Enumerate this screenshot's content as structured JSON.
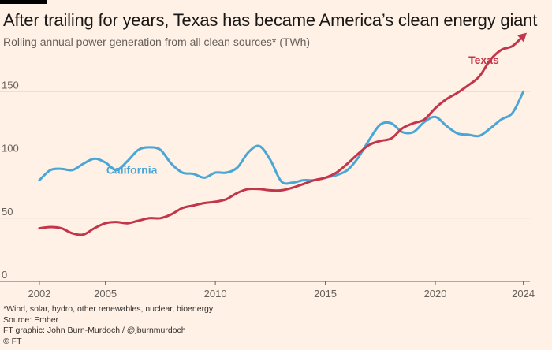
{
  "title": "After trailing for years, Texas has became America’s clean energy giant",
  "subtitle": "Rolling annual power generation from all clean sources* (TWh)",
  "footer": {
    "note": "*Wind, solar, hydro, other renewables, nuclear, bioenergy",
    "source": "Source: Ember",
    "credit": "FT graphic: John Burn-Murdoch / @jburnmurdoch",
    "copyright": "© FT"
  },
  "colors": {
    "california": "#4aa6d6",
    "texas": "#c3354a",
    "background": "#fff1e5"
  },
  "chart_data": {
    "type": "line",
    "title": "After trailing for years, Texas has became America’s clean energy giant",
    "ylabel": "Rolling annual power generation from all clean sources* (TWh)",
    "xlabel": "",
    "xlim": [
      2001.5,
      2024.3
    ],
    "ylim": [
      0,
      200
    ],
    "x_ticks": [
      2002,
      2005,
      2010,
      2015,
      2020,
      2024
    ],
    "y_ticks": [
      0,
      50,
      100,
      150
    ],
    "series": [
      {
        "name": "California",
        "color": "#4aa6d6",
        "label": "California",
        "points": [
          [
            2002.0,
            80
          ],
          [
            2002.5,
            88
          ],
          [
            2003.0,
            89
          ],
          [
            2003.5,
            88
          ],
          [
            2004.0,
            93
          ],
          [
            2004.5,
            97
          ],
          [
            2005.0,
            94
          ],
          [
            2005.5,
            88
          ],
          [
            2006.0,
            95
          ],
          [
            2006.5,
            104
          ],
          [
            2007.0,
            106
          ],
          [
            2007.5,
            104
          ],
          [
            2008.0,
            93
          ],
          [
            2008.5,
            86
          ],
          [
            2009.0,
            85
          ],
          [
            2009.5,
            82
          ],
          [
            2010.0,
            86
          ],
          [
            2010.5,
            86
          ],
          [
            2011.0,
            90
          ],
          [
            2011.5,
            102
          ],
          [
            2012.0,
            107
          ],
          [
            2012.5,
            96
          ],
          [
            2013.0,
            79
          ],
          [
            2013.5,
            78
          ],
          [
            2014.0,
            80
          ],
          [
            2014.5,
            80
          ],
          [
            2015.0,
            82
          ],
          [
            2015.5,
            84
          ],
          [
            2016.0,
            88
          ],
          [
            2016.5,
            98
          ],
          [
            2017.0,
            112
          ],
          [
            2017.5,
            124
          ],
          [
            2018.0,
            125
          ],
          [
            2018.5,
            118
          ],
          [
            2019.0,
            118
          ],
          [
            2019.5,
            126
          ],
          [
            2020.0,
            130
          ],
          [
            2020.5,
            123
          ],
          [
            2021.0,
            117
          ],
          [
            2021.5,
            116
          ],
          [
            2022.0,
            115
          ],
          [
            2022.5,
            121
          ],
          [
            2023.0,
            128
          ],
          [
            2023.5,
            133
          ],
          [
            2024.0,
            150
          ]
        ]
      },
      {
        "name": "Texas",
        "color": "#c3354a",
        "label": "Texas",
        "points": [
          [
            2002.0,
            42
          ],
          [
            2002.5,
            43
          ],
          [
            2003.0,
            42
          ],
          [
            2003.5,
            38
          ],
          [
            2004.0,
            37
          ],
          [
            2004.5,
            42
          ],
          [
            2005.0,
            46
          ],
          [
            2005.5,
            47
          ],
          [
            2006.0,
            46
          ],
          [
            2006.5,
            48
          ],
          [
            2007.0,
            50
          ],
          [
            2007.5,
            50
          ],
          [
            2008.0,
            53
          ],
          [
            2008.5,
            58
          ],
          [
            2009.0,
            60
          ],
          [
            2009.5,
            62
          ],
          [
            2010.0,
            63
          ],
          [
            2010.5,
            65
          ],
          [
            2011.0,
            70
          ],
          [
            2011.5,
            73
          ],
          [
            2012.0,
            73
          ],
          [
            2012.5,
            72
          ],
          [
            2013.0,
            72
          ],
          [
            2013.5,
            74
          ],
          [
            2014.0,
            77
          ],
          [
            2014.5,
            80
          ],
          [
            2015.0,
            82
          ],
          [
            2015.5,
            86
          ],
          [
            2016.0,
            93
          ],
          [
            2016.5,
            101
          ],
          [
            2017.0,
            108
          ],
          [
            2017.5,
            111
          ],
          [
            2018.0,
            113
          ],
          [
            2018.5,
            121
          ],
          [
            2019.0,
            125
          ],
          [
            2019.5,
            128
          ],
          [
            2020.0,
            137
          ],
          [
            2020.5,
            144
          ],
          [
            2021.0,
            149
          ],
          [
            2021.5,
            155
          ],
          [
            2022.0,
            162
          ],
          [
            2022.5,
            175
          ],
          [
            2023.0,
            183
          ],
          [
            2023.5,
            186
          ],
          [
            2024.0,
            194
          ]
        ]
      }
    ]
  }
}
